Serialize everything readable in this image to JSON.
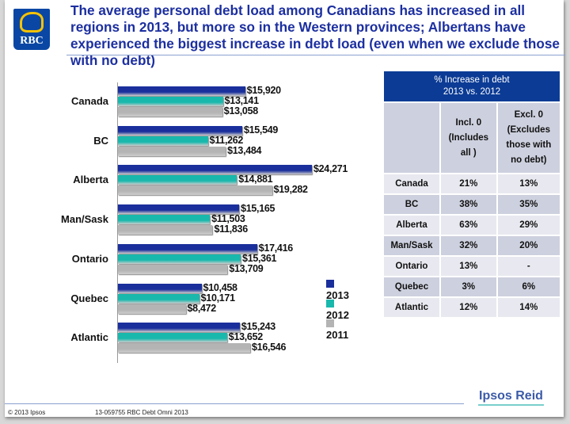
{
  "header": {
    "logo_text": "RBC",
    "title": "The average personal debt load among Canadians has increased in all regions in 2013, but more so in the Western provinces; Albertans have experienced the biggest increase in debt load (even when we exclude those with no debt)"
  },
  "chart_data": {
    "type": "bar",
    "orientation": "horizontal",
    "categories": [
      "Canada",
      "BC",
      "Alberta",
      "Man/Sask",
      "Ontario",
      "Quebec",
      "Atlantic"
    ],
    "series": [
      {
        "name": "2013",
        "color": "#1a2f9c",
        "values": [
          15920,
          15549,
          24271,
          15165,
          17416,
          10458,
          15243
        ],
        "labels": [
          "$15,920",
          "$15,549",
          "$24,271",
          "$15,165",
          "$17,416",
          "$10,458",
          "$15,243"
        ]
      },
      {
        "name": "2012",
        "color": "#19b8ad",
        "values": [
          13141,
          11262,
          14881,
          11503,
          15361,
          10171,
          13652
        ],
        "labels": [
          "$13,141",
          "$11,262",
          "$14,881",
          "$11,503",
          "$15,361",
          "$10,171",
          "$13,652"
        ]
      },
      {
        "name": "2011",
        "color": "#b4b4b4",
        "values": [
          13058,
          13484,
          19282,
          11836,
          13709,
          8472,
          16546
        ],
        "labels": [
          "$13,058",
          "$13,484",
          "$19,282",
          "$11,836",
          "$13,709",
          "$8,472",
          "$16,546"
        ]
      }
    ],
    "legend": "right",
    "grid": false,
    "xlim": [
      0,
      24271
    ]
  },
  "table": {
    "title_line1": "% Increase in debt",
    "title_line2": "2013 vs. 2012",
    "col1": [
      "Incl. 0",
      "(Includes",
      "all )"
    ],
    "col2": [
      "Excl. 0",
      "(Excludes",
      "those with",
      "no debt)"
    ],
    "rows": [
      [
        "Canada",
        "21%",
        "13%"
      ],
      [
        "BC",
        "38%",
        "35%"
      ],
      [
        "Alberta",
        "63%",
        "29%"
      ],
      [
        "Man/Sask",
        "32%",
        "20%"
      ],
      [
        "Ontario",
        "13%",
        "-"
      ],
      [
        "Quebec",
        "3%",
        "6%"
      ],
      [
        "Atlantic",
        "12%",
        "14%"
      ]
    ]
  },
  "footer": {
    "copyright": "© 2013 Ipsos",
    "project": "13-059755 RBC Debt Omni 2013",
    "brand": "Ipsos Reid"
  }
}
